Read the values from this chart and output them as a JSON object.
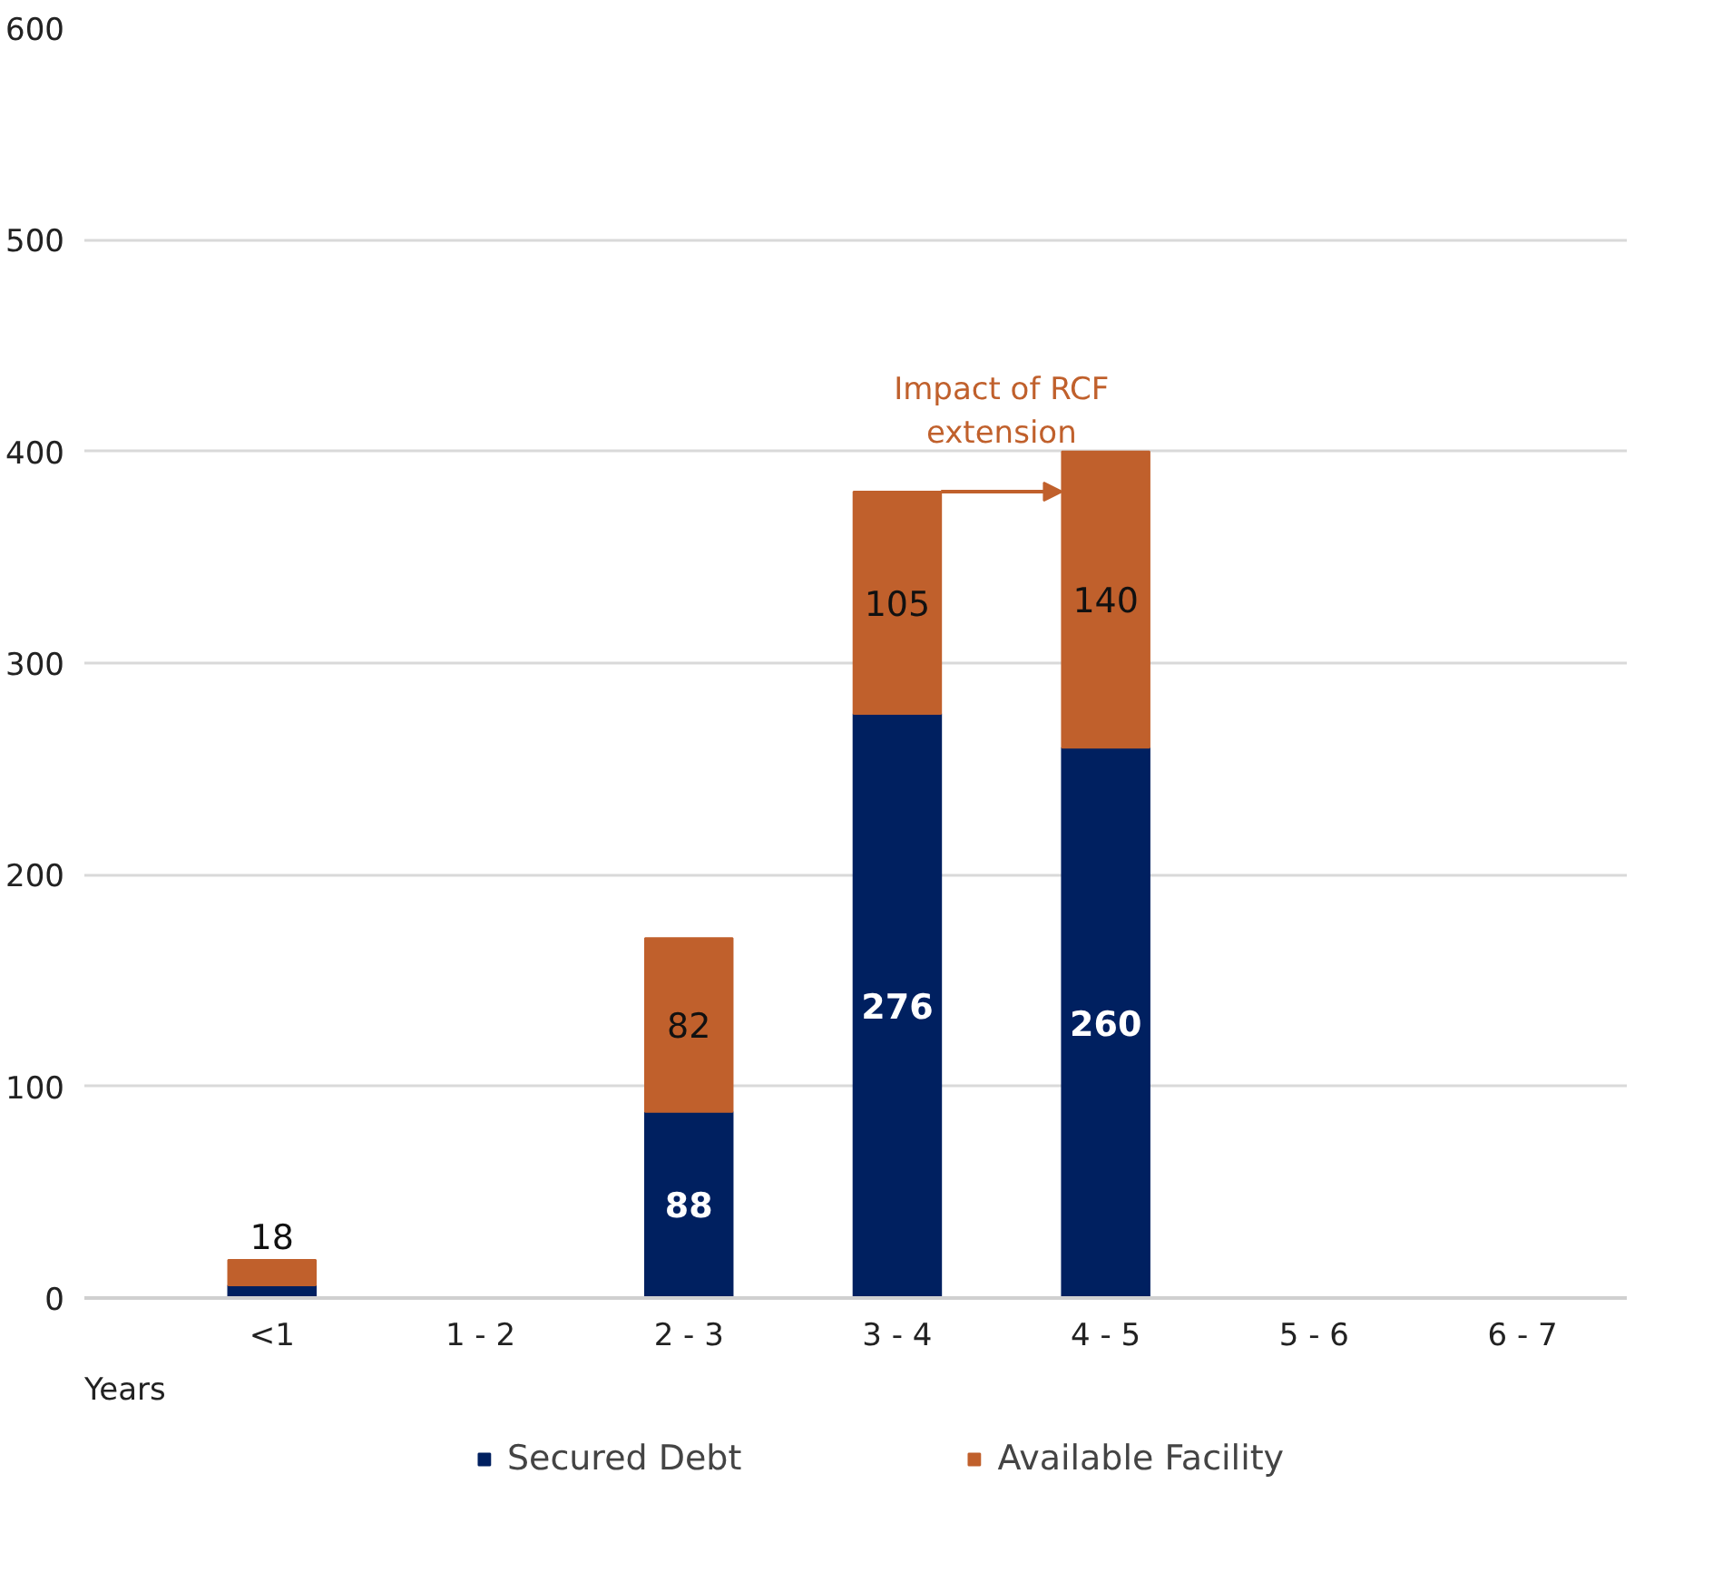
{
  "chart_data": {
    "type": "bar",
    "stacked": true,
    "xlabel": "Years",
    "categories": [
      "<1",
      "1 - 2",
      "2 - 3",
      "3 - 4",
      "4 - 5",
      "5 - 6",
      "6 - 7"
    ],
    "series": [
      {
        "name": "Secured Debt",
        "color": "#002060",
        "values": [
          6,
          0,
          88,
          276,
          260,
          0,
          0
        ],
        "value_labels": [
          null,
          null,
          "88",
          "276",
          "260",
          null,
          null
        ]
      },
      {
        "name": "Available Facility",
        "color": "#c0602c",
        "values": [
          12,
          0,
          82,
          105,
          140,
          0,
          0
        ],
        "value_labels": [
          null,
          null,
          "82",
          "105",
          "140",
          null,
          null
        ]
      }
    ],
    "totals": [
      "18",
      null,
      null,
      null,
      null,
      null,
      null
    ],
    "ylim": [
      0,
      600
    ],
    "yticks": [
      0,
      100,
      200,
      300,
      400,
      500,
      600
    ],
    "grid": "y",
    "legend": "bottom",
    "annotations": [
      {
        "text": "Impact of RCF\nextension",
        "x": "3 - 4",
        "y": 381
      }
    ]
  }
}
